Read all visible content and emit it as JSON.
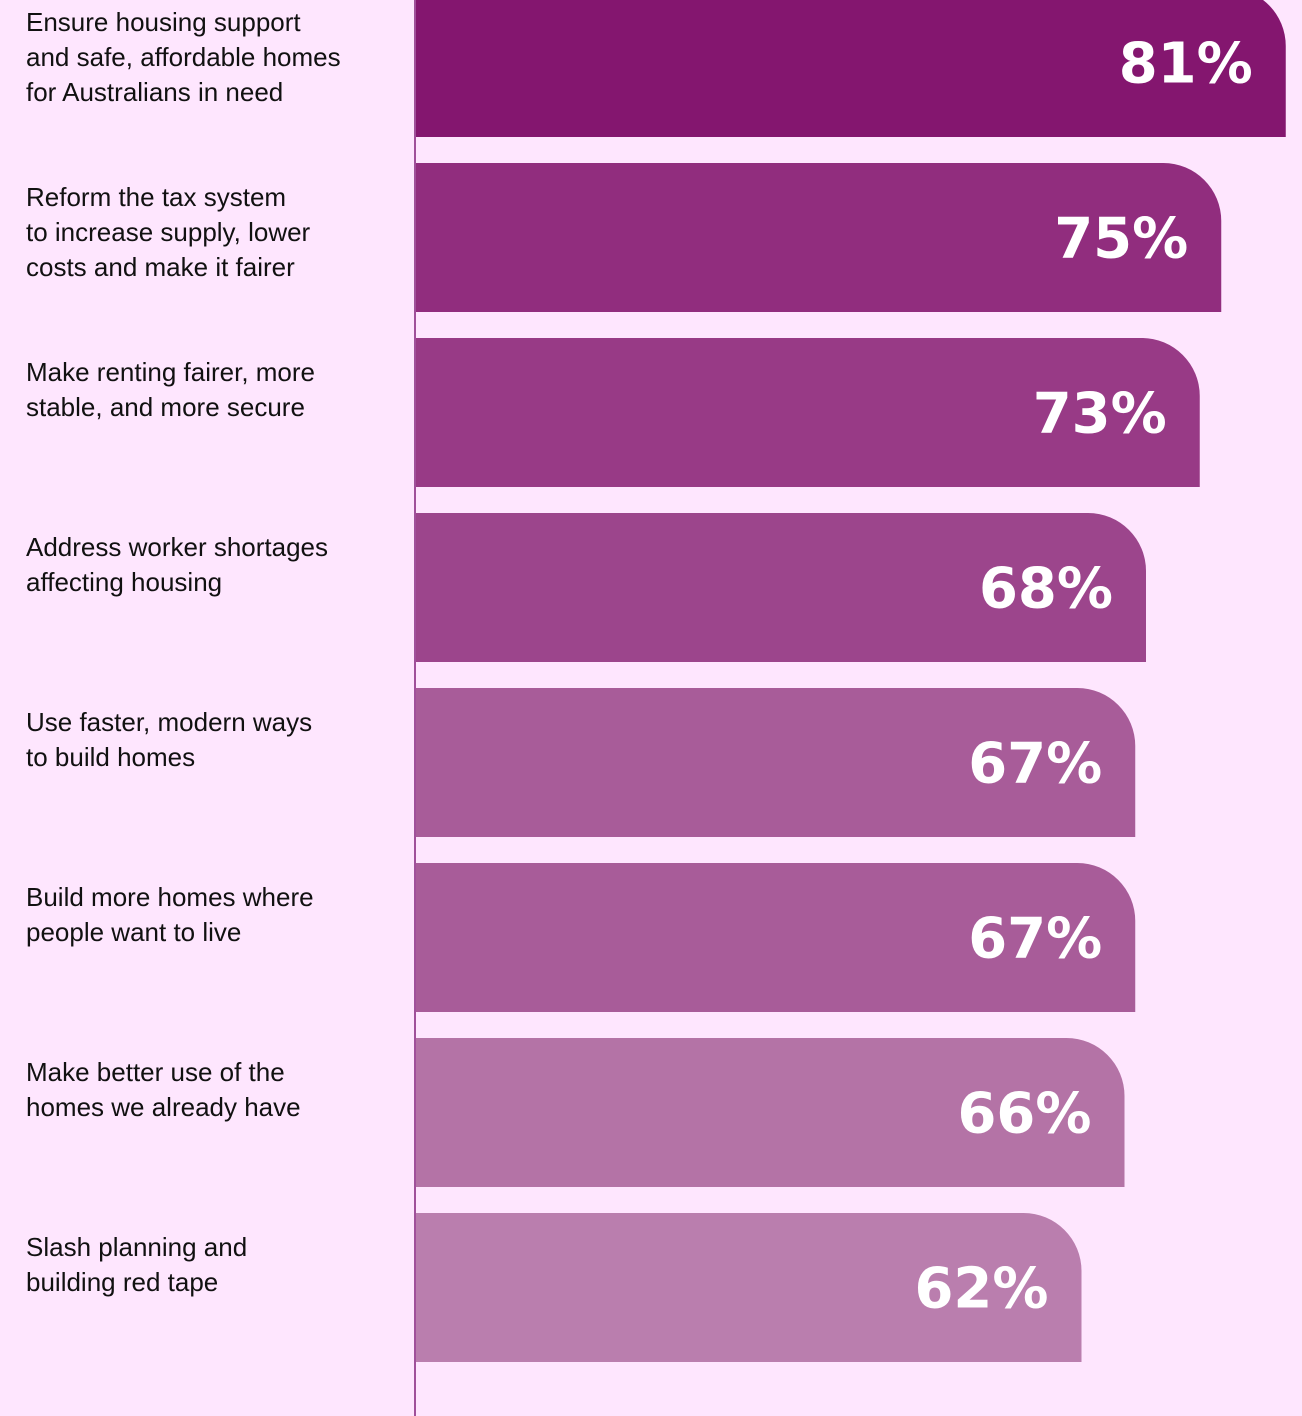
{
  "chart_data": {
    "type": "bar",
    "orientation": "horizontal",
    "categories": [
      [
        "Ensure housing support",
        "and safe, affordable homes",
        "for Australians in need"
      ],
      [
        "Reform the tax system",
        "to increase supply, lower",
        "costs and make it fairer"
      ],
      [
        "Make renting fairer, more",
        "stable, and more secure"
      ],
      [
        "Address worker shortages",
        "affecting housing"
      ],
      [
        "Use faster, modern ways",
        "to build homes"
      ],
      [
        "Build more homes where",
        "people want to live"
      ],
      [
        "Make better use of the",
        "homes we already have"
      ],
      [
        "Slash planning and",
        "building red tape"
      ]
    ],
    "values": [
      81,
      75,
      73,
      68,
      67,
      67,
      66,
      62
    ],
    "value_labels": [
      "81%",
      "75%",
      "73%",
      "68%",
      "67%",
      "67%",
      "66%",
      "62%"
    ],
    "bar_colors": [
      "#84166f",
      "#912d7e",
      "#983a86",
      "#9c458c",
      "#a85c99",
      "#a85c99",
      "#b473a6",
      "#ba7eae"
    ],
    "title": "",
    "xlabel": "",
    "ylabel": "",
    "grid": false
  },
  "colors": {
    "background": "#fee6fe",
    "axis": "#a0509a",
    "label_text": "#111111",
    "value_text": "#ffffff"
  }
}
